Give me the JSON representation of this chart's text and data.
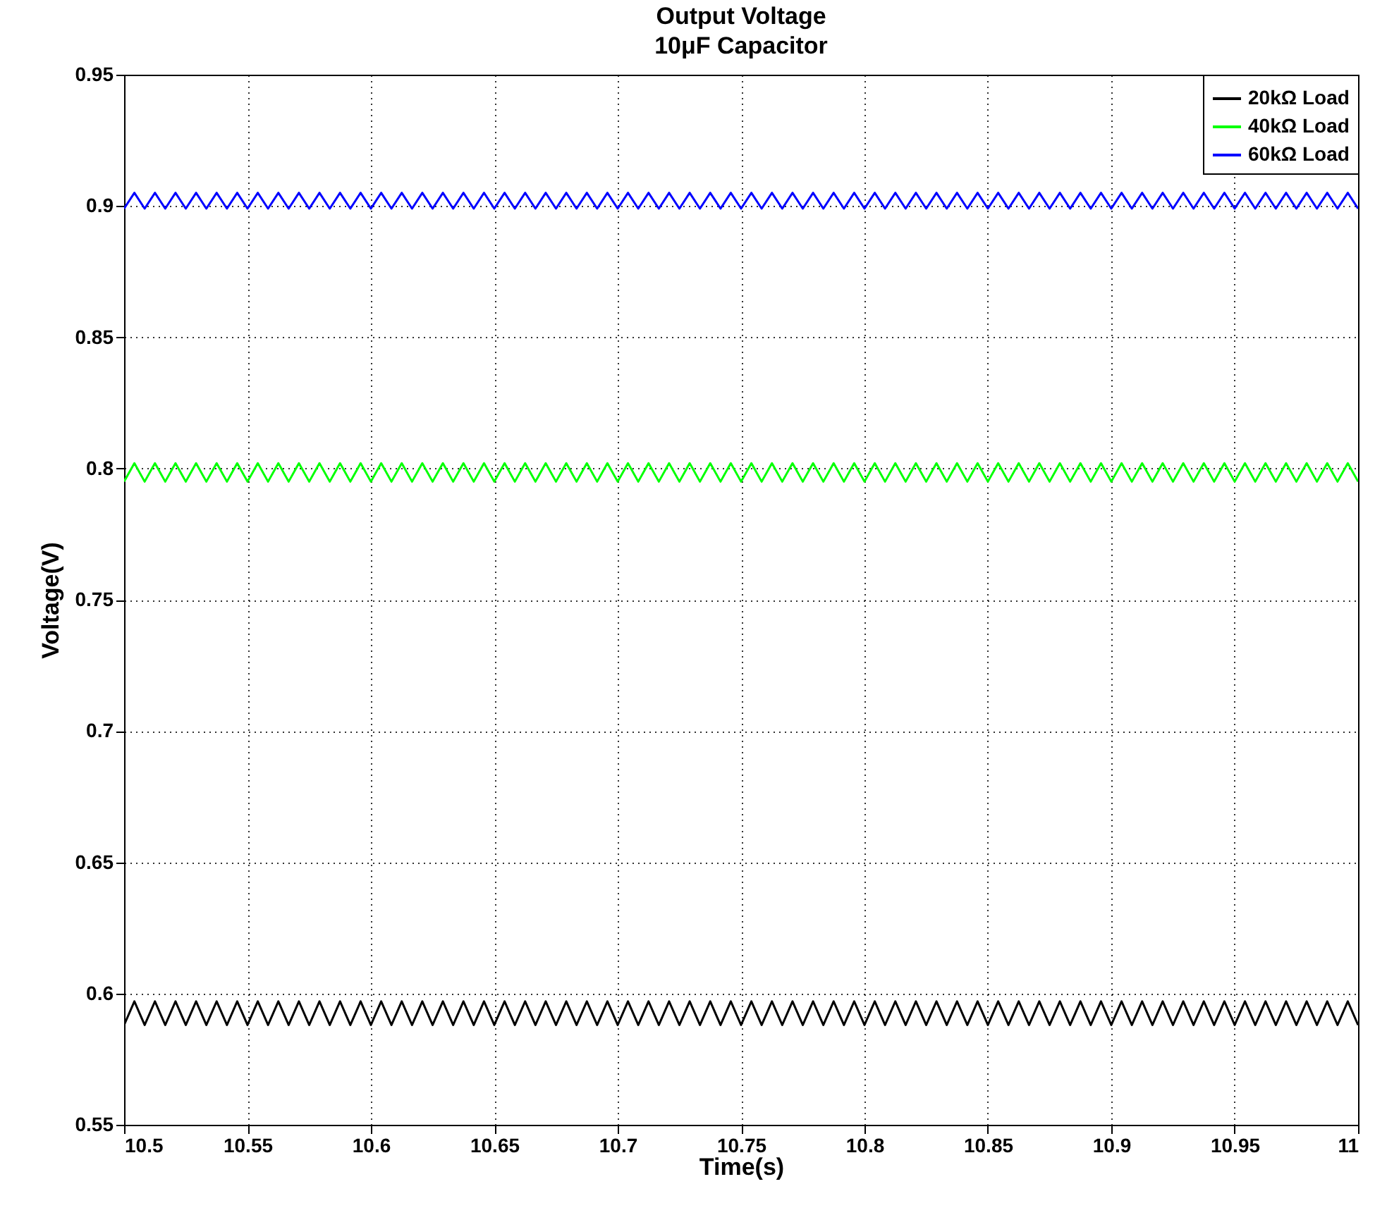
{
  "chart_data": {
    "type": "line",
    "title": "Output Voltage\n10μF Capacitor",
    "xlabel": "Time(s)",
    "ylabel": "Voltage(V)",
    "xlim": [
      10.5,
      11
    ],
    "xticks": [
      10.5,
      10.55,
      10.6,
      10.65,
      10.7,
      10.75,
      10.8,
      10.85,
      10.9,
      10.95,
      11
    ],
    "ylim": [
      0.55,
      0.95
    ],
    "yticks": [
      0.55,
      0.6,
      0.65,
      0.7,
      0.75,
      0.8,
      0.85,
      0.9,
      0.95
    ],
    "grid": true,
    "legend": "top right",
    "x": [
      10.5,
      10.50417,
      10.50833,
      10.5125,
      10.51667,
      10.52083,
      10.525,
      10.52917,
      10.53333,
      10.5375,
      10.54167,
      10.54583,
      10.55,
      10.55417,
      10.55833,
      10.5625,
      10.56667,
      10.57083,
      10.575,
      10.57917,
      10.58333,
      10.5875,
      10.59167,
      10.59583,
      10.6,
      10.60417,
      10.60833,
      10.6125,
      10.61667,
      10.62083,
      10.625,
      10.62917,
      10.63333,
      10.6375,
      10.64167,
      10.64583,
      10.65,
      10.65417,
      10.65833,
      10.6625,
      10.66667,
      10.67083,
      10.675,
      10.67917,
      10.68333,
      10.6875,
      10.69167,
      10.69583,
      10.7,
      10.70417,
      10.70833,
      10.7125,
      10.71667,
      10.72083,
      10.725,
      10.72917,
      10.73333,
      10.7375,
      10.74167,
      10.74583,
      10.75,
      10.75417,
      10.75833,
      10.7625,
      10.76667,
      10.77083,
      10.775,
      10.77917,
      10.78333,
      10.7875,
      10.79167,
      10.79583,
      10.8,
      10.80417,
      10.80833,
      10.8125,
      10.81667,
      10.82083,
      10.825,
      10.82917,
      10.83333,
      10.8375,
      10.84167,
      10.84583,
      10.85,
      10.85417,
      10.85833,
      10.8625,
      10.86667,
      10.87083,
      10.875,
      10.87917,
      10.88333,
      10.8875,
      10.89167,
      10.89583,
      10.9,
      10.90417,
      10.90833,
      10.9125,
      10.91667,
      10.92083,
      10.925,
      10.92917,
      10.93333,
      10.9375,
      10.94167,
      10.94583,
      10.95,
      10.95417,
      10.95833,
      10.9625,
      10.96667,
      10.97083,
      10.975,
      10.97917,
      10.98333,
      10.9875,
      10.99167,
      10.99583,
      11
    ],
    "series": [
      {
        "name": "20kΩ Load",
        "color": "#000000",
        "values": [
          0.588,
          0.597,
          0.588,
          0.597,
          0.588,
          0.597,
          0.588,
          0.597,
          0.588,
          0.597,
          0.588,
          0.597,
          0.588,
          0.597,
          0.588,
          0.597,
          0.588,
          0.597,
          0.588,
          0.597,
          0.588,
          0.597,
          0.588,
          0.597,
          0.588,
          0.597,
          0.588,
          0.597,
          0.588,
          0.597,
          0.588,
          0.597,
          0.588,
          0.597,
          0.588,
          0.597,
          0.588,
          0.597,
          0.588,
          0.597,
          0.588,
          0.597,
          0.588,
          0.597,
          0.588,
          0.597,
          0.588,
          0.597,
          0.588,
          0.597,
          0.588,
          0.597,
          0.588,
          0.597,
          0.588,
          0.597,
          0.588,
          0.597,
          0.588,
          0.597,
          0.588,
          0.597,
          0.588,
          0.597,
          0.588,
          0.597,
          0.588,
          0.597,
          0.588,
          0.597,
          0.588,
          0.597,
          0.588,
          0.597,
          0.588,
          0.597,
          0.588,
          0.597,
          0.588,
          0.597,
          0.588,
          0.597,
          0.588,
          0.597,
          0.588,
          0.597,
          0.588,
          0.597,
          0.588,
          0.597,
          0.588,
          0.597,
          0.588,
          0.597,
          0.588,
          0.597,
          0.588,
          0.597,
          0.588,
          0.597,
          0.588,
          0.597,
          0.588,
          0.597,
          0.588,
          0.597,
          0.588,
          0.597,
          0.588,
          0.597,
          0.588,
          0.597,
          0.588,
          0.597,
          0.588,
          0.597,
          0.588,
          0.597,
          0.588,
          0.597,
          0.588
        ]
      },
      {
        "name": "40kΩ Load",
        "color": "#00ff00",
        "values": [
          0.795,
          0.802,
          0.795,
          0.802,
          0.795,
          0.802,
          0.795,
          0.802,
          0.795,
          0.802,
          0.795,
          0.802,
          0.795,
          0.802,
          0.795,
          0.802,
          0.795,
          0.802,
          0.795,
          0.802,
          0.795,
          0.802,
          0.795,
          0.802,
          0.795,
          0.802,
          0.795,
          0.802,
          0.795,
          0.802,
          0.795,
          0.802,
          0.795,
          0.802,
          0.795,
          0.802,
          0.795,
          0.802,
          0.795,
          0.802,
          0.795,
          0.802,
          0.795,
          0.802,
          0.795,
          0.802,
          0.795,
          0.802,
          0.795,
          0.802,
          0.795,
          0.802,
          0.795,
          0.802,
          0.795,
          0.802,
          0.795,
          0.802,
          0.795,
          0.802,
          0.795,
          0.802,
          0.795,
          0.802,
          0.795,
          0.802,
          0.795,
          0.802,
          0.795,
          0.802,
          0.795,
          0.802,
          0.795,
          0.802,
          0.795,
          0.802,
          0.795,
          0.802,
          0.795,
          0.802,
          0.795,
          0.802,
          0.795,
          0.802,
          0.795,
          0.802,
          0.795,
          0.802,
          0.795,
          0.802,
          0.795,
          0.802,
          0.795,
          0.802,
          0.795,
          0.802,
          0.795,
          0.802,
          0.795,
          0.802,
          0.795,
          0.802,
          0.795,
          0.802,
          0.795,
          0.802,
          0.795,
          0.802,
          0.795,
          0.802,
          0.795,
          0.802,
          0.795,
          0.802,
          0.795,
          0.802,
          0.795,
          0.802,
          0.795,
          0.802,
          0.795
        ]
      },
      {
        "name": "60kΩ Load",
        "color": "#0000ff",
        "values": [
          0.899,
          0.905,
          0.899,
          0.905,
          0.899,
          0.905,
          0.899,
          0.905,
          0.899,
          0.905,
          0.899,
          0.905,
          0.899,
          0.905,
          0.899,
          0.905,
          0.899,
          0.905,
          0.899,
          0.905,
          0.899,
          0.905,
          0.899,
          0.905,
          0.899,
          0.905,
          0.899,
          0.905,
          0.899,
          0.905,
          0.899,
          0.905,
          0.899,
          0.905,
          0.899,
          0.905,
          0.899,
          0.905,
          0.899,
          0.905,
          0.899,
          0.905,
          0.899,
          0.905,
          0.899,
          0.905,
          0.899,
          0.905,
          0.899,
          0.905,
          0.899,
          0.905,
          0.899,
          0.905,
          0.899,
          0.905,
          0.899,
          0.905,
          0.899,
          0.905,
          0.899,
          0.905,
          0.899,
          0.905,
          0.899,
          0.905,
          0.899,
          0.905,
          0.899,
          0.905,
          0.899,
          0.905,
          0.899,
          0.905,
          0.899,
          0.905,
          0.899,
          0.905,
          0.899,
          0.905,
          0.899,
          0.905,
          0.899,
          0.905,
          0.899,
          0.905,
          0.899,
          0.905,
          0.899,
          0.905,
          0.899,
          0.905,
          0.899,
          0.905,
          0.899,
          0.905,
          0.899,
          0.905,
          0.899,
          0.905,
          0.899,
          0.905,
          0.899,
          0.905,
          0.899,
          0.905,
          0.899,
          0.905,
          0.899,
          0.905,
          0.899,
          0.905,
          0.899,
          0.905,
          0.899,
          0.905,
          0.899,
          0.905,
          0.899,
          0.905,
          0.899
        ]
      }
    ]
  }
}
